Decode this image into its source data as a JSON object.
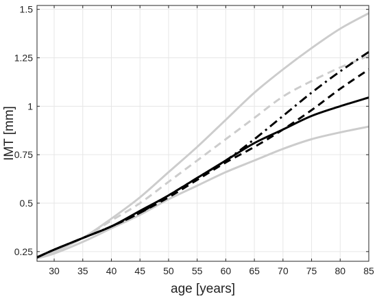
{
  "chart_data": {
    "type": "line",
    "title": "",
    "xlabel": "age [years]",
    "ylabel": "IMT [mm]",
    "xlim": [
      27,
      85
    ],
    "ylim": [
      0.2,
      1.52
    ],
    "xticks": [
      30,
      35,
      40,
      45,
      50,
      55,
      60,
      65,
      70,
      75,
      80,
      85
    ],
    "xtick_labels": [
      "30",
      "35",
      "40",
      "45",
      "50",
      "55",
      "60",
      "65",
      "70",
      "75",
      "80",
      "85"
    ],
    "yticks": [
      0.25,
      0.5,
      0.75,
      1,
      1.25,
      1.5
    ],
    "ytick_labels": [
      "0.25",
      "0.5",
      "0.75",
      "1",
      "1.25",
      "1.5"
    ],
    "grid": true,
    "legend": "none",
    "x": [
      27,
      30,
      35,
      40,
      45,
      50,
      55,
      60,
      65,
      70,
      75,
      80,
      85
    ],
    "series": [
      {
        "style": "solid",
        "color": "#cccccc",
        "values": [
          0.225,
          0.25,
          0.32,
          0.42,
          0.53,
          0.66,
          0.79,
          0.93,
          1.07,
          1.19,
          1.3,
          1.4,
          1.48
        ]
      },
      {
        "style": "dashed",
        "color": "#cccccc",
        "values": [
          0.225,
          0.25,
          0.32,
          0.41,
          0.5,
          0.61,
          0.72,
          0.83,
          0.94,
          1.05,
          1.13,
          1.2,
          1.26
        ]
      },
      {
        "style": "solid",
        "color": "#cccccc",
        "values": [
          0.215,
          0.24,
          0.3,
          0.37,
          0.44,
          0.52,
          0.59,
          0.66,
          0.72,
          0.78,
          0.83,
          0.865,
          0.895
        ]
      },
      {
        "style": "solid",
        "color": "#000000",
        "values": [
          0.22,
          0.26,
          0.32,
          0.38,
          0.46,
          0.54,
          0.63,
          0.72,
          0.81,
          0.88,
          0.95,
          1.0,
          1.045
        ]
      },
      {
        "style": "dashed",
        "color": "#000000",
        "values": [
          0.22,
          0.26,
          0.32,
          0.38,
          0.45,
          0.53,
          0.62,
          0.71,
          0.79,
          0.88,
          0.98,
          1.09,
          1.19
        ]
      },
      {
        "style": "dashdot",
        "color": "#000000",
        "values": [
          0.22,
          0.26,
          0.32,
          0.38,
          0.45,
          0.54,
          0.63,
          0.72,
          0.83,
          0.95,
          1.07,
          1.18,
          1.28
        ]
      }
    ]
  }
}
